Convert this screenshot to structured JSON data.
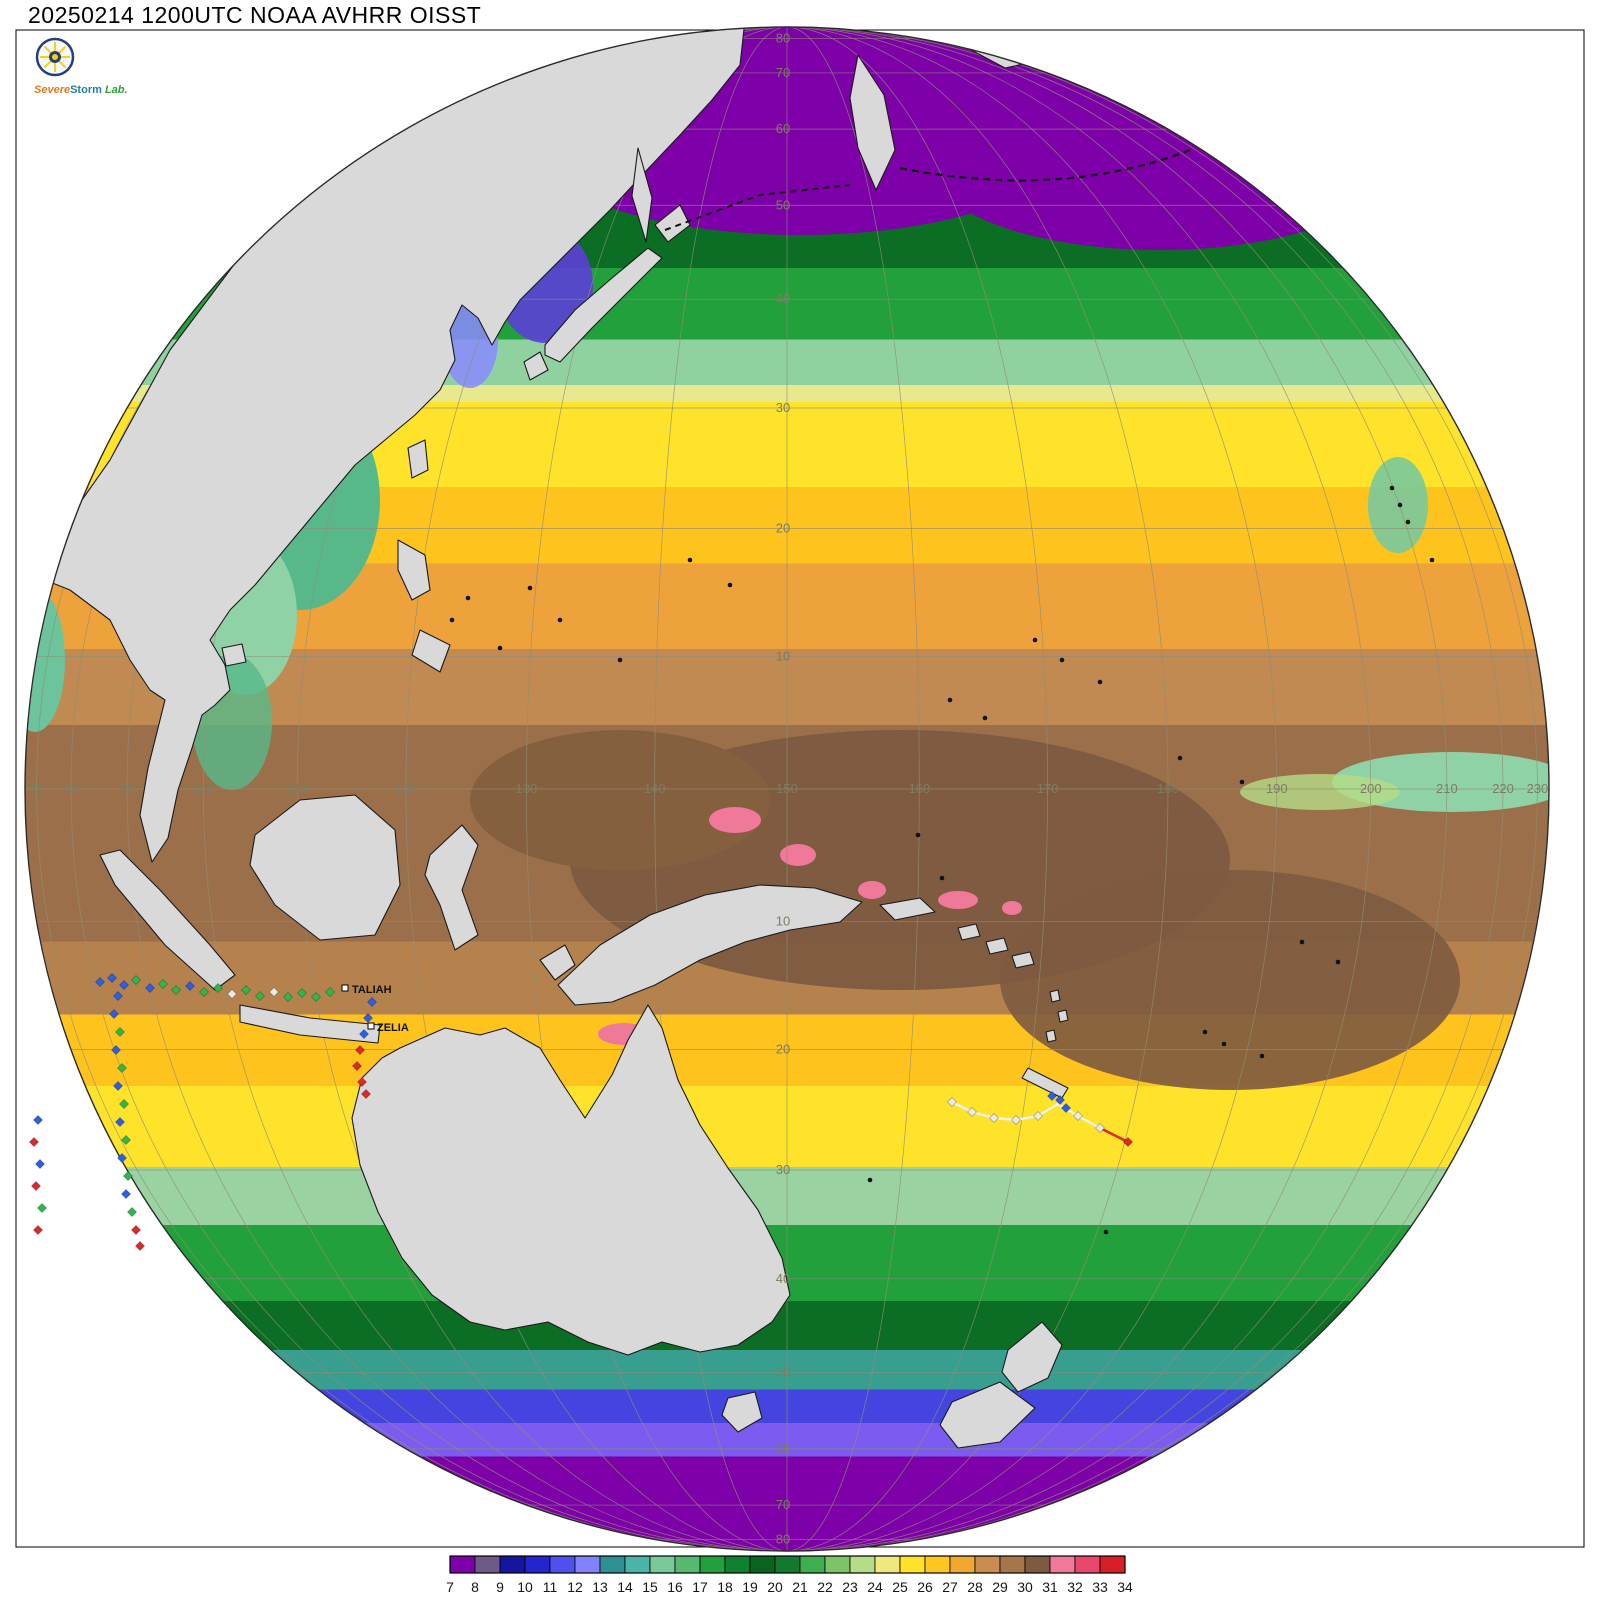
{
  "title": "20250214 1200UTC NOAA AVHRR OISST",
  "logo": {
    "word1": "Severe",
    "word2": "Storm",
    "word3": "Lab."
  },
  "map": {
    "projection": "orthographic-globe",
    "land_color": "#d9d9d9",
    "coast_color": "#1a1a1a",
    "graticule_color": "#8f8f74",
    "label_color": "#7d7d62",
    "background": "#ffffff"
  },
  "graticule": {
    "lat_labels_north": [
      80,
      70,
      60,
      50,
      40,
      30,
      20,
      10
    ],
    "lat_labels_south": [
      10,
      20,
      30,
      40,
      50,
      60,
      70,
      80
    ],
    "lon_labels": [
      70,
      80,
      90,
      100,
      110,
      120,
      130,
      140,
      150,
      160,
      170,
      180,
      190,
      200,
      210,
      220,
      230
    ]
  },
  "storms": [
    {
      "name": "TALIAH"
    },
    {
      "name": "ZELIA"
    }
  ],
  "colorbar": {
    "ticks": [
      7,
      8,
      9,
      10,
      11,
      12,
      13,
      14,
      15,
      16,
      17,
      18,
      19,
      20,
      21,
      22,
      23,
      24,
      25,
      26,
      27,
      28,
      29,
      30,
      31,
      32,
      33,
      34
    ],
    "colors": [
      "#7d00a8",
      "#6e5a86",
      "#15159e",
      "#2525cf",
      "#5050ee",
      "#8282ff",
      "#2f8f92",
      "#4ab5a6",
      "#79c99b",
      "#57b871",
      "#22a03c",
      "#0f8030",
      "#0a6420",
      "#137830",
      "#3fae4e",
      "#7cc465",
      "#b5dc86",
      "#f0e87e",
      "#ffe22a",
      "#ffc61e",
      "#f0a82e",
      "#c98d52",
      "#a5764a",
      "#7d5a40",
      "#f07898",
      "#e8486a",
      "#d81e28"
    ]
  }
}
